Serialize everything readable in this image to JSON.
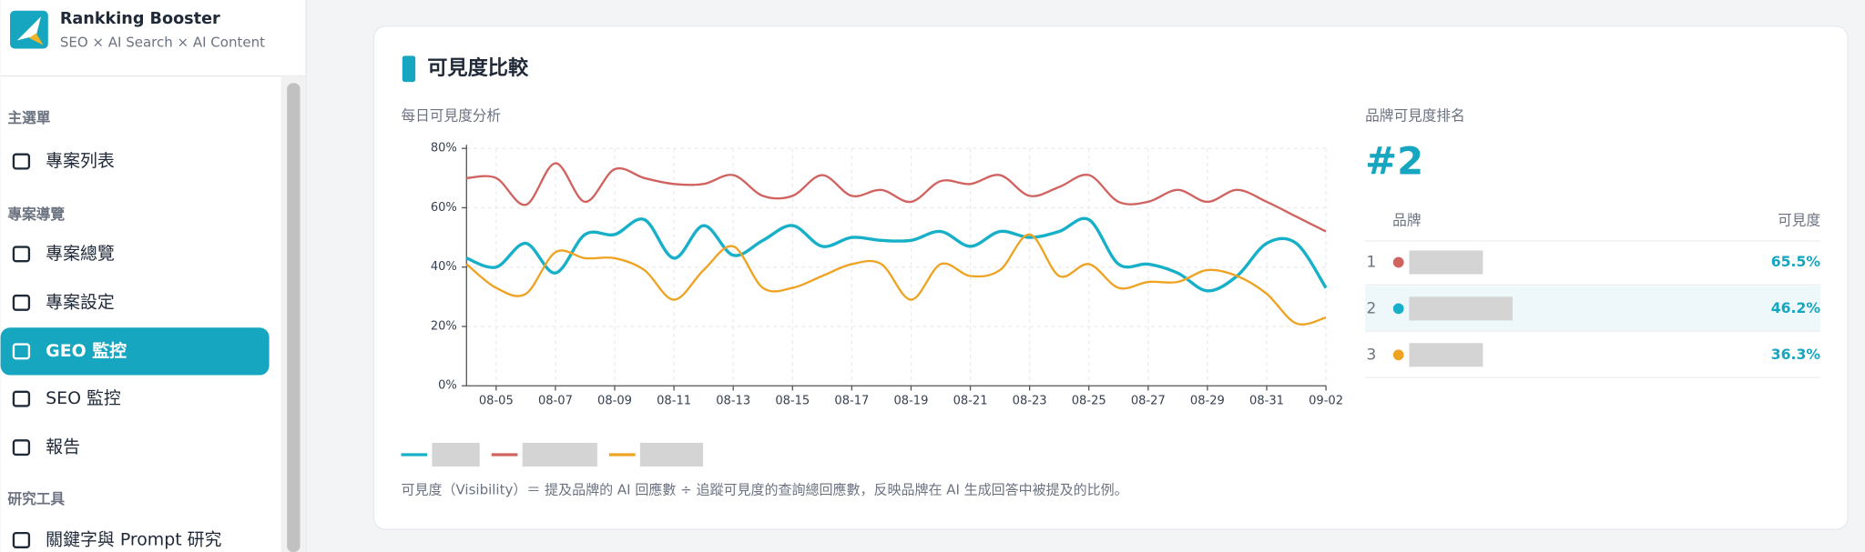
{
  "sidebar": {
    "brand": "Rankking Booster",
    "tagline": "SEO × AI Search × AI Content",
    "groups": [
      {
        "title": "主選單",
        "items": [
          {
            "label": "專案列表",
            "active": false
          }
        ]
      },
      {
        "title": "專案導覽",
        "items": [
          {
            "label": "專案總覽",
            "active": false
          },
          {
            "label": "專案設定",
            "active": false
          },
          {
            "label": "GEO 監控",
            "active": true
          },
          {
            "label": "SEO 監控",
            "active": false
          },
          {
            "label": "報告",
            "active": false
          }
        ]
      },
      {
        "title": "研究工具",
        "items": [
          {
            "label": "關鍵字與 Prompt 研究",
            "active": false
          }
        ]
      }
    ]
  },
  "card": {
    "title": "可見度比較",
    "footnote": "可見度（Visibility）＝ 提及品牌的 AI 回應數 ÷ 追蹤可見度的查詢總回應數，反映品牌在 AI 生成回答中被提及的比例。"
  },
  "chart_data": {
    "type": "line",
    "title": "每日可見度分析",
    "categories": [
      null,
      "08-05",
      null,
      "08-07",
      null,
      "08-09",
      null,
      "08-11",
      null,
      "08-13",
      null,
      "08-15",
      null,
      "08-17",
      null,
      "08-19",
      null,
      "08-21",
      null,
      "08-23",
      null,
      "08-25",
      null,
      "08-27",
      null,
      "08-29",
      null,
      "08-31",
      null,
      "09-02"
    ],
    "series": [
      {
        "color": "#17b0c8",
        "values": [
          43,
          40,
          48,
          38,
          51,
          51,
          56,
          43,
          54,
          44,
          49,
          54,
          47,
          50,
          49,
          49,
          52,
          47,
          52,
          50,
          52,
          56,
          41,
          41,
          38,
          32,
          37,
          48,
          48,
          33
        ]
      },
      {
        "color": "#d0635f",
        "values": [
          70,
          70,
          61,
          75,
          62,
          73,
          70,
          68,
          68,
          71,
          64,
          64,
          71,
          64,
          66,
          62,
          69,
          68,
          71,
          64,
          67,
          71,
          62,
          62,
          66,
          62,
          66,
          62,
          57,
          52
        ]
      },
      {
        "color": "#eea323",
        "values": [
          41,
          33,
          31,
          45,
          43,
          43,
          39,
          29,
          39,
          47,
          33,
          33,
          37,
          41,
          41,
          29,
          41,
          37,
          39,
          51,
          37,
          41,
          33,
          35,
          35,
          39,
          37,
          31,
          21,
          23
        ]
      }
    ],
    "ylim": [
      0,
      80
    ],
    "yticks": [
      {
        "value": 0,
        "label": "0%"
      },
      {
        "value": 20,
        "label": "20%"
      },
      {
        "value": 40,
        "label": "40%"
      },
      {
        "value": 60,
        "label": "60%"
      },
      {
        "value": 80,
        "label": "80%"
      }
    ],
    "grid": true
  },
  "ranking": {
    "title": "品牌可見度排名",
    "rank": "#2",
    "headers": [
      "品牌",
      "可見度"
    ],
    "rows": [
      {
        "rank": "1",
        "color": "#d0635f",
        "value": "65.5%",
        "highlight": false
      },
      {
        "rank": "2",
        "color": "#17b0c8",
        "value": "46.2%",
        "highlight": true
      },
      {
        "rank": "3",
        "color": "#eea323",
        "value": "36.3%",
        "highlight": false
      }
    ]
  }
}
